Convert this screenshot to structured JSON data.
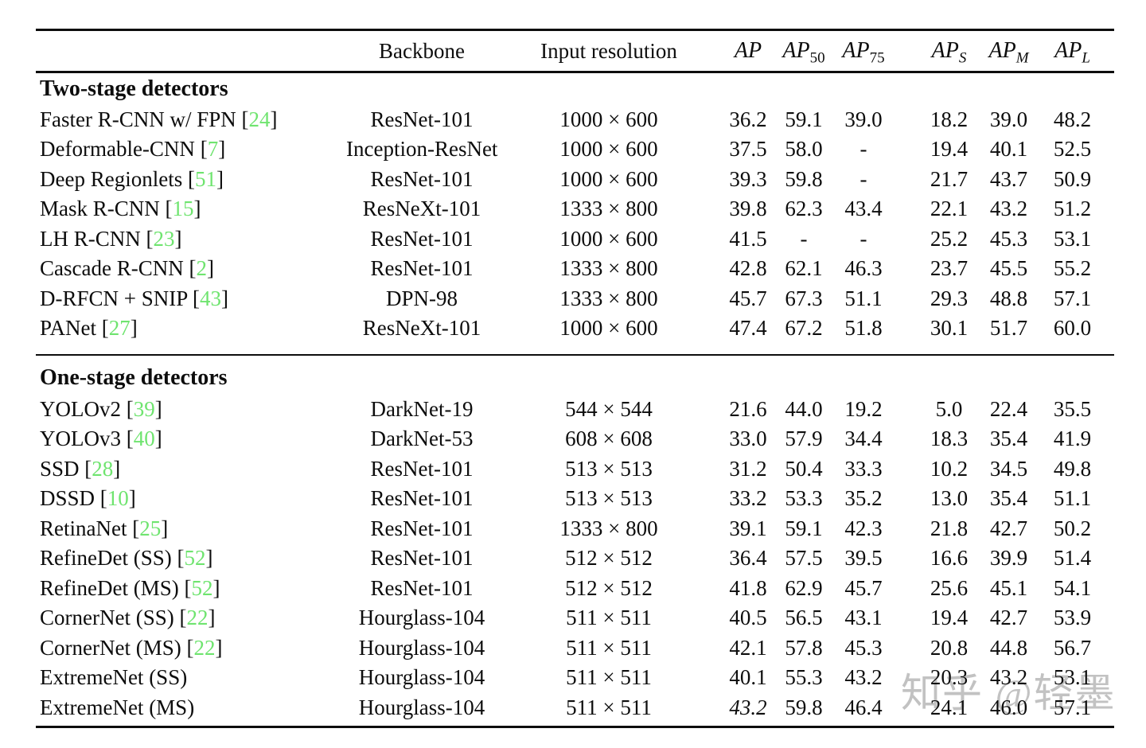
{
  "page": {
    "background": "#ffffff"
  },
  "colors": {
    "text": "#0d0d0d",
    "citation_green": "#6fe46f",
    "watermark_gray": "#c2c2c2"
  },
  "table": {
    "header": {
      "method": "",
      "backbone": "Backbone",
      "input_resolution": "Input resolution",
      "metrics": [
        {
          "base": "AP",
          "sub": ""
        },
        {
          "base": "AP",
          "sub": "50"
        },
        {
          "base": "AP",
          "sub": "75"
        },
        {
          "base": "AP",
          "sub": "S"
        },
        {
          "base": "AP",
          "sub": "M"
        },
        {
          "base": "AP",
          "sub": "L"
        }
      ]
    },
    "sections": [
      {
        "title": "Two-stage detectors",
        "rows": [
          {
            "method": "Faster R-CNN w/ FPN",
            "cite": "24",
            "backbone": "ResNet-101",
            "resolution": "1000 × 600",
            "values": [
              "36.2",
              "59.1",
              "39.0",
              "18.2",
              "39.0",
              "48.2"
            ]
          },
          {
            "method": "Deformable-CNN",
            "cite": "7",
            "backbone": "Inception-ResNet",
            "resolution": "1000 × 600",
            "values": [
              "37.5",
              "58.0",
              "-",
              "19.4",
              "40.1",
              "52.5"
            ]
          },
          {
            "method": "Deep Regionlets",
            "cite": "51",
            "backbone": "ResNet-101",
            "resolution": "1000 × 600",
            "values": [
              "39.3",
              "59.8",
              "-",
              "21.7",
              "43.7",
              "50.9"
            ]
          },
          {
            "method": "Mask R-CNN",
            "cite": "15",
            "backbone": "ResNeXt-101",
            "resolution": "1333 × 800",
            "values": [
              "39.8",
              "62.3",
              "43.4",
              "22.1",
              "43.2",
              "51.2"
            ]
          },
          {
            "method": "LH R-CNN",
            "cite": "23",
            "backbone": "ResNet-101",
            "resolution": "1000 × 600",
            "values": [
              "41.5",
              "-",
              "-",
              "25.2",
              "45.3",
              "53.1"
            ]
          },
          {
            "method": "Cascade R-CNN",
            "cite": "2",
            "backbone": "ResNet-101",
            "resolution": "1333 × 800",
            "values": [
              "42.8",
              "62.1",
              "46.3",
              "23.7",
              "45.5",
              "55.2"
            ]
          },
          {
            "method": "D-RFCN + SNIP",
            "cite": "43",
            "backbone": "DPN-98",
            "resolution": "1333 × 800",
            "values": [
              "45.7",
              "67.3",
              "51.1",
              "29.3",
              "48.8",
              "57.1"
            ]
          },
          {
            "method": "PANet",
            "cite": "27",
            "backbone": "ResNeXt-101",
            "resolution": "1000 × 600",
            "values": [
              "47.4",
              "67.2",
              "51.8",
              "30.1",
              "51.7",
              "60.0"
            ]
          }
        ]
      },
      {
        "title": "One-stage detectors",
        "rows": [
          {
            "method": "YOLOv2",
            "cite": "39",
            "backbone": "DarkNet-19",
            "resolution": "544 × 544",
            "values": [
              "21.6",
              "44.0",
              "19.2",
              "5.0",
              "22.4",
              "35.5"
            ]
          },
          {
            "method": "YOLOv3",
            "cite": "40",
            "backbone": "DarkNet-53",
            "resolution": "608 × 608",
            "values": [
              "33.0",
              "57.9",
              "34.4",
              "18.3",
              "35.4",
              "41.9"
            ]
          },
          {
            "method": "SSD",
            "cite": "28",
            "backbone": "ResNet-101",
            "resolution": "513 × 513",
            "values": [
              "31.2",
              "50.4",
              "33.3",
              "10.2",
              "34.5",
              "49.8"
            ]
          },
          {
            "method": "DSSD",
            "cite": "10",
            "backbone": "ResNet-101",
            "resolution": "513 × 513",
            "values": [
              "33.2",
              "53.3",
              "35.2",
              "13.0",
              "35.4",
              "51.1"
            ]
          },
          {
            "method": "RetinaNet",
            "cite": "25",
            "backbone": "ResNet-101",
            "resolution": "1333 × 800",
            "values": [
              "39.1",
              "59.1",
              "42.3",
              "21.8",
              "42.7",
              "50.2"
            ]
          },
          {
            "method": "RefineDet (SS)",
            "cite": "52",
            "backbone": "ResNet-101",
            "resolution": "512 × 512",
            "values": [
              "36.4",
              "57.5",
              "39.5",
              "16.6",
              "39.9",
              "51.4"
            ]
          },
          {
            "method": "RefineDet (MS)",
            "cite": "52",
            "backbone": "ResNet-101",
            "resolution": "512 × 512",
            "values": [
              "41.8",
              "62.9",
              "45.7",
              "25.6",
              "45.1",
              "54.1"
            ]
          },
          {
            "method": "CornerNet (SS)",
            "cite": "22",
            "backbone": "Hourglass-104",
            "resolution": "511 × 511",
            "values": [
              "40.5",
              "56.5",
              "43.1",
              "19.4",
              "42.7",
              "53.9"
            ]
          },
          {
            "method": "CornerNet (MS)",
            "cite": "22",
            "backbone": "Hourglass-104",
            "resolution": "511 × 511",
            "values": [
              "42.1",
              "57.8",
              "45.3",
              "20.8",
              "44.8",
              "56.7"
            ]
          },
          {
            "method": "ExtremeNet (SS)",
            "cite": null,
            "backbone": "Hourglass-104",
            "resolution": "511 × 511",
            "values": [
              "40.1",
              "55.3",
              "43.2",
              "20.3",
              "43.2",
              "53.1"
            ]
          },
          {
            "method": "ExtremeNet (MS)",
            "cite": null,
            "backbone": "Hourglass-104",
            "resolution": "511 × 511",
            "values": [
              "43.2",
              "59.8",
              "46.4",
              "24.1",
              "46.0",
              "57.1"
            ],
            "ap_italic": true
          }
        ]
      }
    ]
  },
  "watermark": {
    "text": "知乎 @轻墨"
  }
}
